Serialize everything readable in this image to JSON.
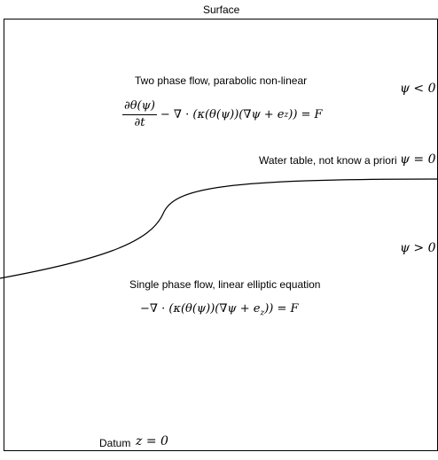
{
  "diagram": {
    "top_label": "Surface",
    "upper_region": {
      "title": "Two phase flow, parabolic non-linear",
      "frac_num": "∂θ(ψ)",
      "frac_den": "∂t",
      "equation_rest": "− ∇ · (κ(θ(ψ))(∇ψ + e",
      "equation_sub": "z",
      "equation_end": ")) = F",
      "condition": "ψ < 0"
    },
    "water_table": {
      "label": "Water table, not know a priori",
      "condition": "ψ = 0"
    },
    "lower_region": {
      "condition": "ψ > 0",
      "title": "Single phase flow, linear elliptic equation",
      "equation": "−∇ · (κ(θ(ψ))(∇ψ + e",
      "equation_sub": "z",
      "equation_end": ")) = F"
    },
    "datum": {
      "label": "Datum",
      "condition": "z = 0"
    }
  }
}
